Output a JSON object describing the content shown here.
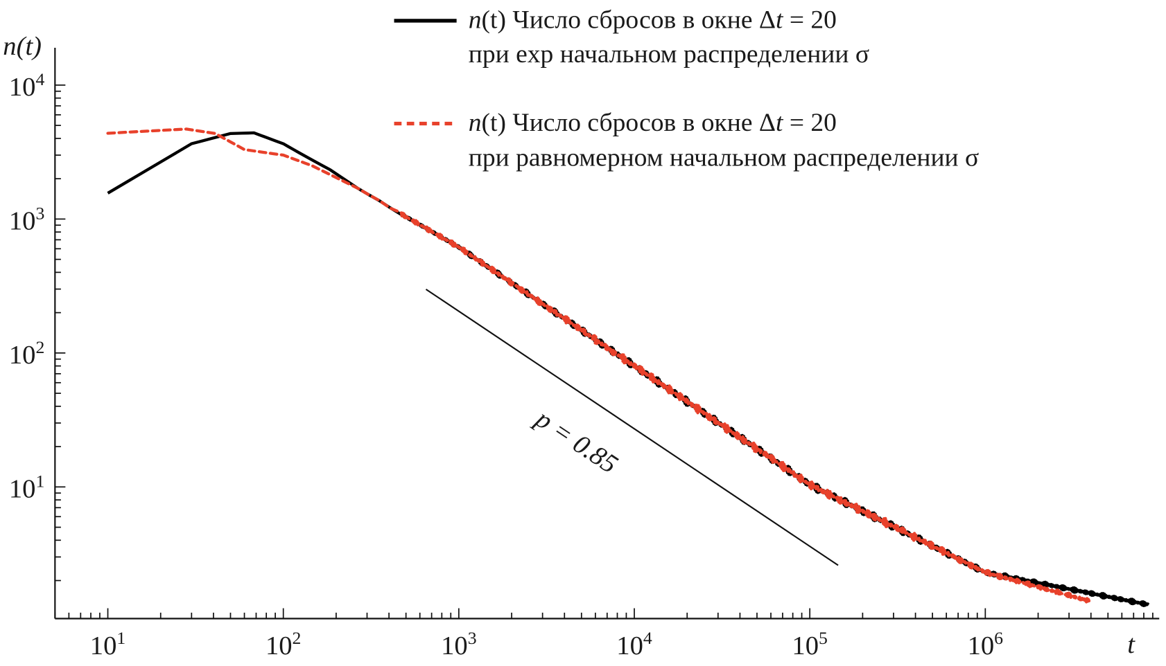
{
  "chart_data": {
    "type": "line",
    "x_scale": "log",
    "y_scale": "log",
    "xlim": [
      5,
      9800000
    ],
    "ylim": [
      1.04,
      19000
    ],
    "grid": false,
    "xlabel": "t",
    "ylabel": "n(t)",
    "x_ticks": [
      {
        "value": 10,
        "base": "10",
        "exp": "1"
      },
      {
        "value": 100,
        "base": "10",
        "exp": "2"
      },
      {
        "value": 1000,
        "base": "10",
        "exp": "3"
      },
      {
        "value": 10000,
        "base": "10",
        "exp": "4"
      },
      {
        "value": 100000,
        "base": "10",
        "exp": "5"
      },
      {
        "value": 1000000,
        "base": "10",
        "exp": "6"
      }
    ],
    "y_ticks": [
      {
        "value": 10,
        "base": "10",
        "exp": "1"
      },
      {
        "value": 100,
        "base": "10",
        "exp": "2"
      },
      {
        "value": 1000,
        "base": "10",
        "exp": "3"
      },
      {
        "value": 10000,
        "base": "10",
        "exp": "4"
      }
    ],
    "legend_placement": "top-right",
    "series": [
      {
        "name_line1_italic": "n",
        "name_line1_paren": "(t)",
        "name_line1_text": " Число сбросов в окне Δ",
        "name_line1_t": "t",
        "name_line1_eq": " = 20",
        "name_line2": "при exp начальном распределении σ",
        "color": "#000000",
        "style": "solid",
        "x": [
          10,
          30,
          50,
          68,
          100,
          130,
          185,
          265,
          470,
          1000,
          10000,
          100000,
          1000000,
          8500000
        ],
        "y": [
          1560,
          3650,
          4350,
          4400,
          3650,
          3000,
          2330,
          1700,
          1090,
          617,
          80,
          10.4,
          2.3,
          1.32
        ]
      },
      {
        "name_line1_italic": "n",
        "name_line1_paren": "(t)",
        "name_line1_text": " Число сбросов в окне Δ",
        "name_line1_t": "t",
        "name_line1_eq": " = 20",
        "name_line2": "при равномерном начальном распределении σ",
        "color": "#e8412b",
        "style": "dashed",
        "x": [
          10,
          28,
          41,
          60,
          100,
          146,
          265,
          470,
          1000,
          10000,
          100000,
          1000000,
          3900000
        ],
        "y": [
          4370,
          4700,
          4350,
          3300,
          3000,
          2500,
          1700,
          1090,
          617,
          80,
          10.4,
          2.3,
          1.41
        ]
      }
    ],
    "annotations": [
      {
        "type": "reference-line",
        "label": "p = 0.85",
        "x": [
          650,
          145000
        ],
        "y": [
          299,
          2.6
        ]
      }
    ]
  }
}
